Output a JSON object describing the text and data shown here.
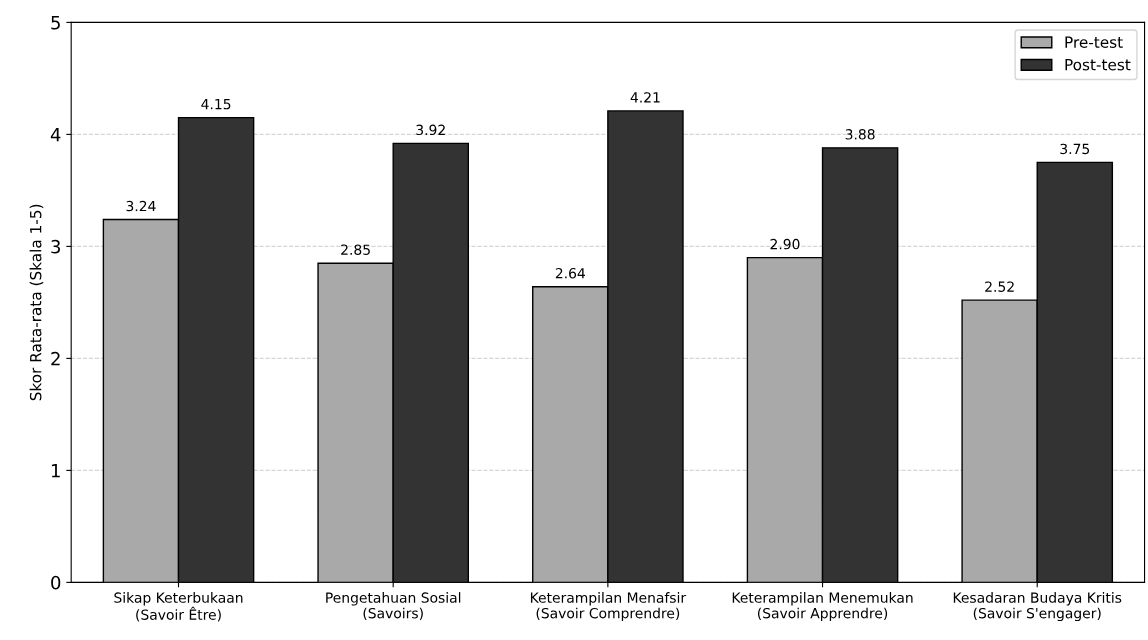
{
  "chart_data": {
    "type": "bar",
    "ylabel": "Skor Rata-rata (Skala 1-5)",
    "categories": [
      "Sikap Keterbukaan\n(Savoir Être)",
      "Pengetahuan Sosial\n(Savoirs)",
      "Keterampilan Menafsir\n(Savoir Comprendre)",
      "Keterampilan Menemukan\n(Savoir Apprendre)",
      "Kesadaran Budaya Kritis\n(Savoir S'engager)"
    ],
    "series": [
      {
        "name": "Pre-test",
        "color": "#a9a9a9",
        "values": [
          3.24,
          2.85,
          2.64,
          2.9,
          2.52
        ],
        "value_labels": [
          "3.24",
          "2.85",
          "2.64",
          "2.90",
          "2.52"
        ]
      },
      {
        "name": "Post-test",
        "color": "#333333",
        "values": [
          4.15,
          3.92,
          4.21,
          3.88,
          3.75
        ],
        "value_labels": [
          "4.15",
          "3.92",
          "4.21",
          "3.88",
          "3.75"
        ]
      }
    ],
    "ylim": [
      0,
      5
    ],
    "yticks": [
      0,
      1,
      2,
      3,
      4,
      5
    ],
    "grid": "y",
    "legend": "top right"
  }
}
